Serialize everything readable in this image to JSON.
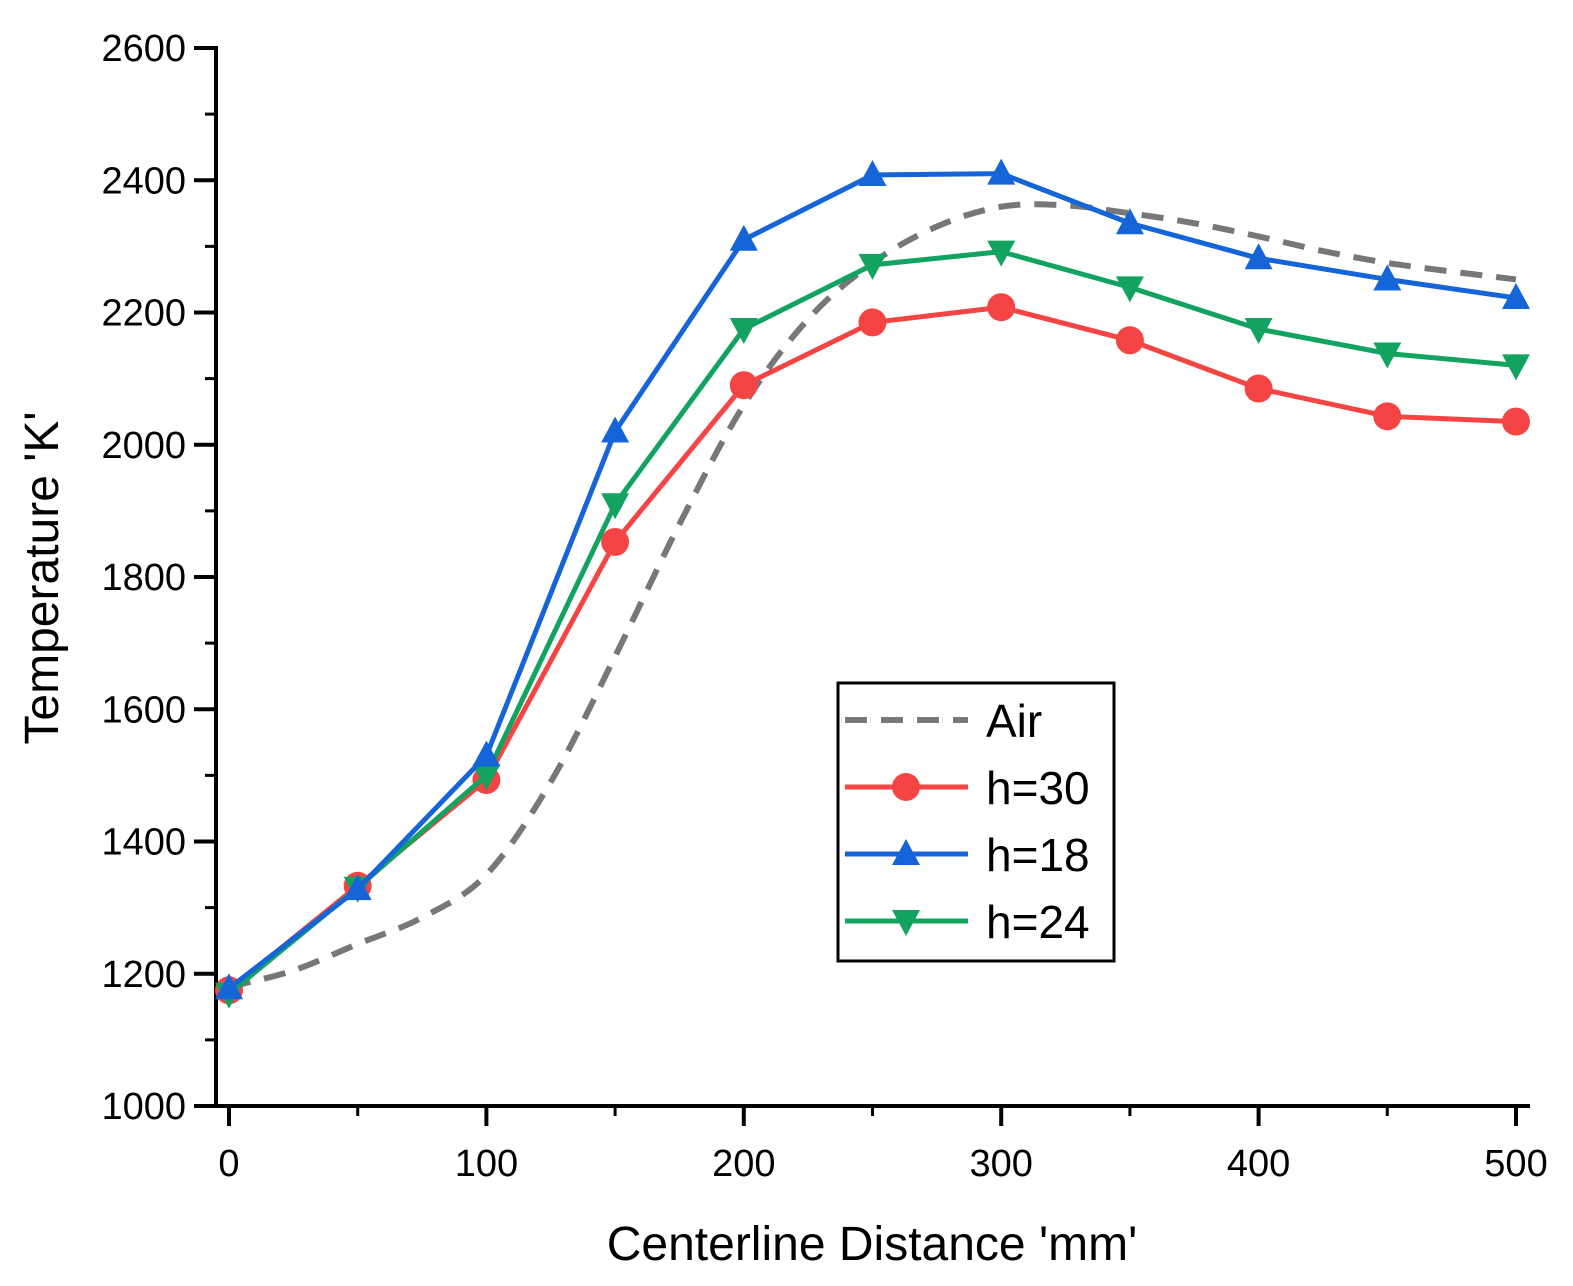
{
  "chart_data": {
    "type": "line",
    "title": "",
    "xlabel": "Centerline Distance 'mm'",
    "ylabel": "Temperature 'K'",
    "xlim": [
      -5,
      505
    ],
    "ylim": [
      1000,
      2600
    ],
    "xticks": [
      0,
      100,
      200,
      300,
      400,
      500
    ],
    "yticks": [
      1000,
      1200,
      1400,
      1600,
      1800,
      2000,
      2200,
      2400,
      2600
    ],
    "grid": false,
    "legend_position": "center-right",
    "series": [
      {
        "name": "Air",
        "color": "#777777",
        "style": "dashed",
        "marker": "none",
        "x": [
          0,
          25,
          50,
          75,
          100,
          125,
          150,
          175,
          200,
          225,
          250,
          275,
          300,
          325,
          350,
          375,
          400,
          425,
          450,
          475,
          500
        ],
        "y": [
          1180,
          1205,
          1245,
          1285,
          1350,
          1490,
          1680,
          1880,
          2060,
          2190,
          2275,
          2330,
          2360,
          2362,
          2350,
          2335,
          2315,
          2293,
          2275,
          2262,
          2250
        ]
      },
      {
        "name": "h=30",
        "color": "#f44444",
        "style": "solid",
        "marker": "circle",
        "x": [
          0,
          50,
          100,
          150,
          200,
          250,
          300,
          350,
          400,
          450,
          500
        ],
        "y": [
          1175,
          1333,
          1493,
          1853,
          2090,
          2185,
          2208,
          2158,
          2085,
          2043,
          2035
        ]
      },
      {
        "name": "h=18",
        "color": "#1565d8",
        "style": "solid",
        "marker": "triangle-up",
        "x": [
          0,
          50,
          100,
          150,
          200,
          250,
          300,
          350,
          400,
          450,
          500
        ],
        "y": [
          1178,
          1328,
          1530,
          2020,
          2310,
          2408,
          2410,
          2335,
          2282,
          2250,
          2222
        ]
      },
      {
        "name": "h=24",
        "color": "#13a360",
        "style": "solid",
        "marker": "triangle-down",
        "x": [
          0,
          50,
          100,
          150,
          200,
          250,
          300,
          350,
          400,
          450,
          500
        ],
        "y": [
          1170,
          1330,
          1500,
          1910,
          2175,
          2272,
          2292,
          2238,
          2175,
          2138,
          2120
        ]
      }
    ]
  }
}
